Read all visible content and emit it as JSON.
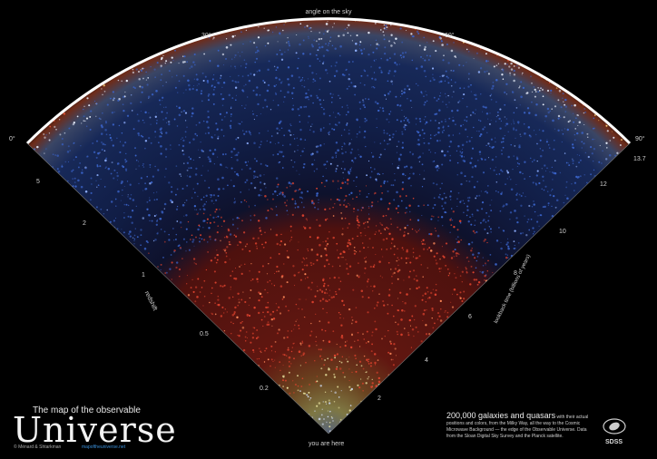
{
  "poster": {
    "top_label": "angle on the sky",
    "top_angles": [
      "0°",
      "30°",
      "60°",
      "90°"
    ],
    "bottom_label": "you are here",
    "left_axis_label": "redshift",
    "left_ticks": [
      "5",
      "2",
      "1",
      "0.5",
      "0.2"
    ],
    "right_axis_label": "lookback time (billions of years)",
    "right_ticks": [
      "13.7",
      "12",
      "10",
      "8",
      "6",
      "4",
      "2"
    ],
    "title_small": "The map of the observable",
    "title_big": "Universe",
    "credit": "© Ménard & Shtarkman",
    "credit_link": "mapoftheuniverse.net",
    "description_highlight": "200,000 galaxies and quasars",
    "description_rest": "with their actual positions and colors, from the Milky Way, all the way to the Cosmic Microwave Background — the edge of the Observable Universe. Data from the Sloan Digital Sky Survey and the Planck satellite.",
    "sdss": "SDSS"
  },
  "colors": {
    "near": "#e9e3a0",
    "mid": "#e0432e",
    "far": "#3a63c8",
    "edge": "#ffffff"
  }
}
